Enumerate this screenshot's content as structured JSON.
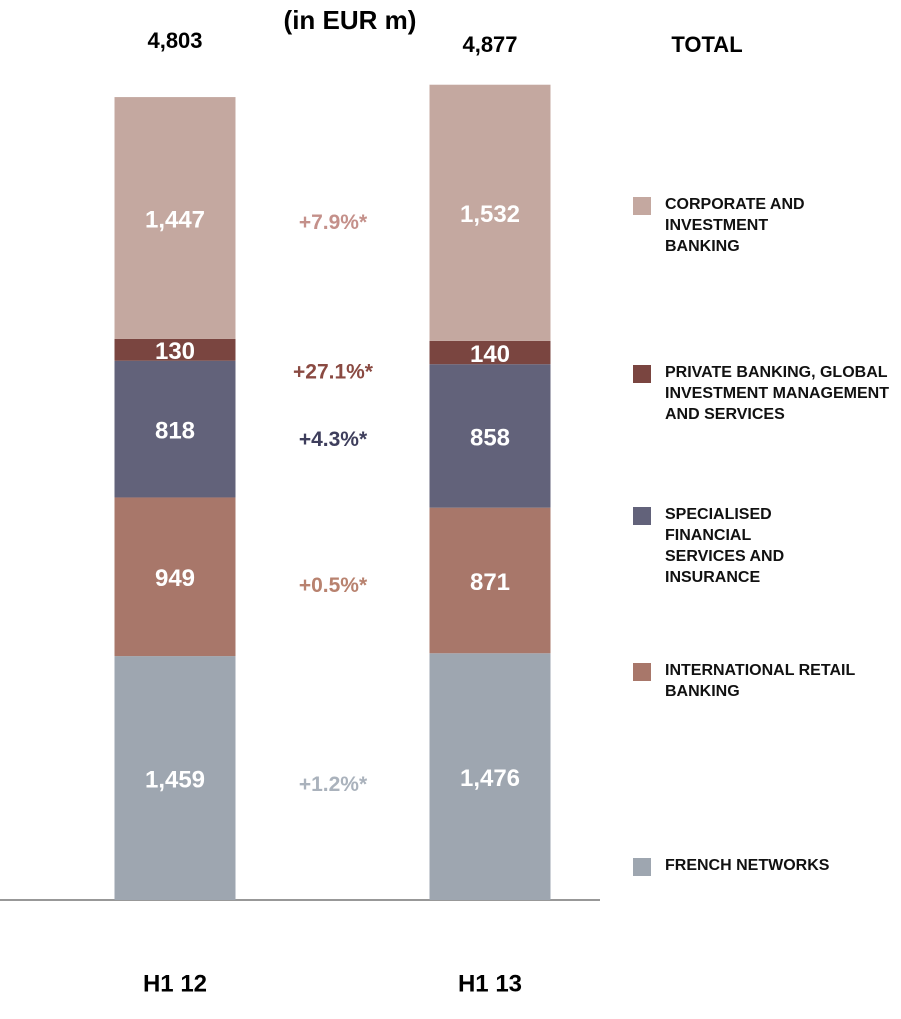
{
  "chart_data": {
    "type": "stacked_bar",
    "subtitle": "(in EUR m)",
    "categories": [
      "H1 12",
      "H1 13"
    ],
    "total_label": "TOTAL",
    "totals": [
      4803,
      4877
    ],
    "totals_labels": [
      "4,803",
      "4,877"
    ],
    "ylim": [
      0,
      5300
    ],
    "series": [
      {
        "name": "FRENCH NETWORKS",
        "color": "#9ea6b0",
        "values": [
          1459,
          1476
        ],
        "value_labels": [
          "1,459",
          "1,476"
        ],
        "change": "+1.2%*",
        "change_color": "#aab2bc"
      },
      {
        "name": "INTERNATIONAL RETAIL BANKING",
        "color": "#a8776a",
        "values": [
          949,
          871
        ],
        "value_labels": [
          "949",
          "871"
        ],
        "change": "+0.5%*",
        "change_color": "#b8826f"
      },
      {
        "name": "SPECIALISED FINANCIAL SERVICES AND INSURANCE",
        "color": "#62627a",
        "values": [
          818,
          858
        ],
        "value_labels": [
          "818",
          "858"
        ],
        "change": "+4.3%*",
        "change_color": "#3e3e5c"
      },
      {
        "name": "PRIVATE BANKING, GLOBAL INVESTMENT MANAGEMENT AND SERVICES",
        "color": "#7a4540",
        "values": [
          130,
          140
        ],
        "value_labels": [
          "130",
          "140"
        ],
        "change": "+27.1%*",
        "change_color": "#8a4a42"
      },
      {
        "name": "CORPORATE AND INVESTMENT BANKING",
        "color": "#c4a8a0",
        "values": [
          1447,
          1532
        ],
        "value_labels": [
          "1,447",
          "1,532"
        ],
        "change": "+7.9%*",
        "change_color": "#c4908a"
      }
    ]
  }
}
